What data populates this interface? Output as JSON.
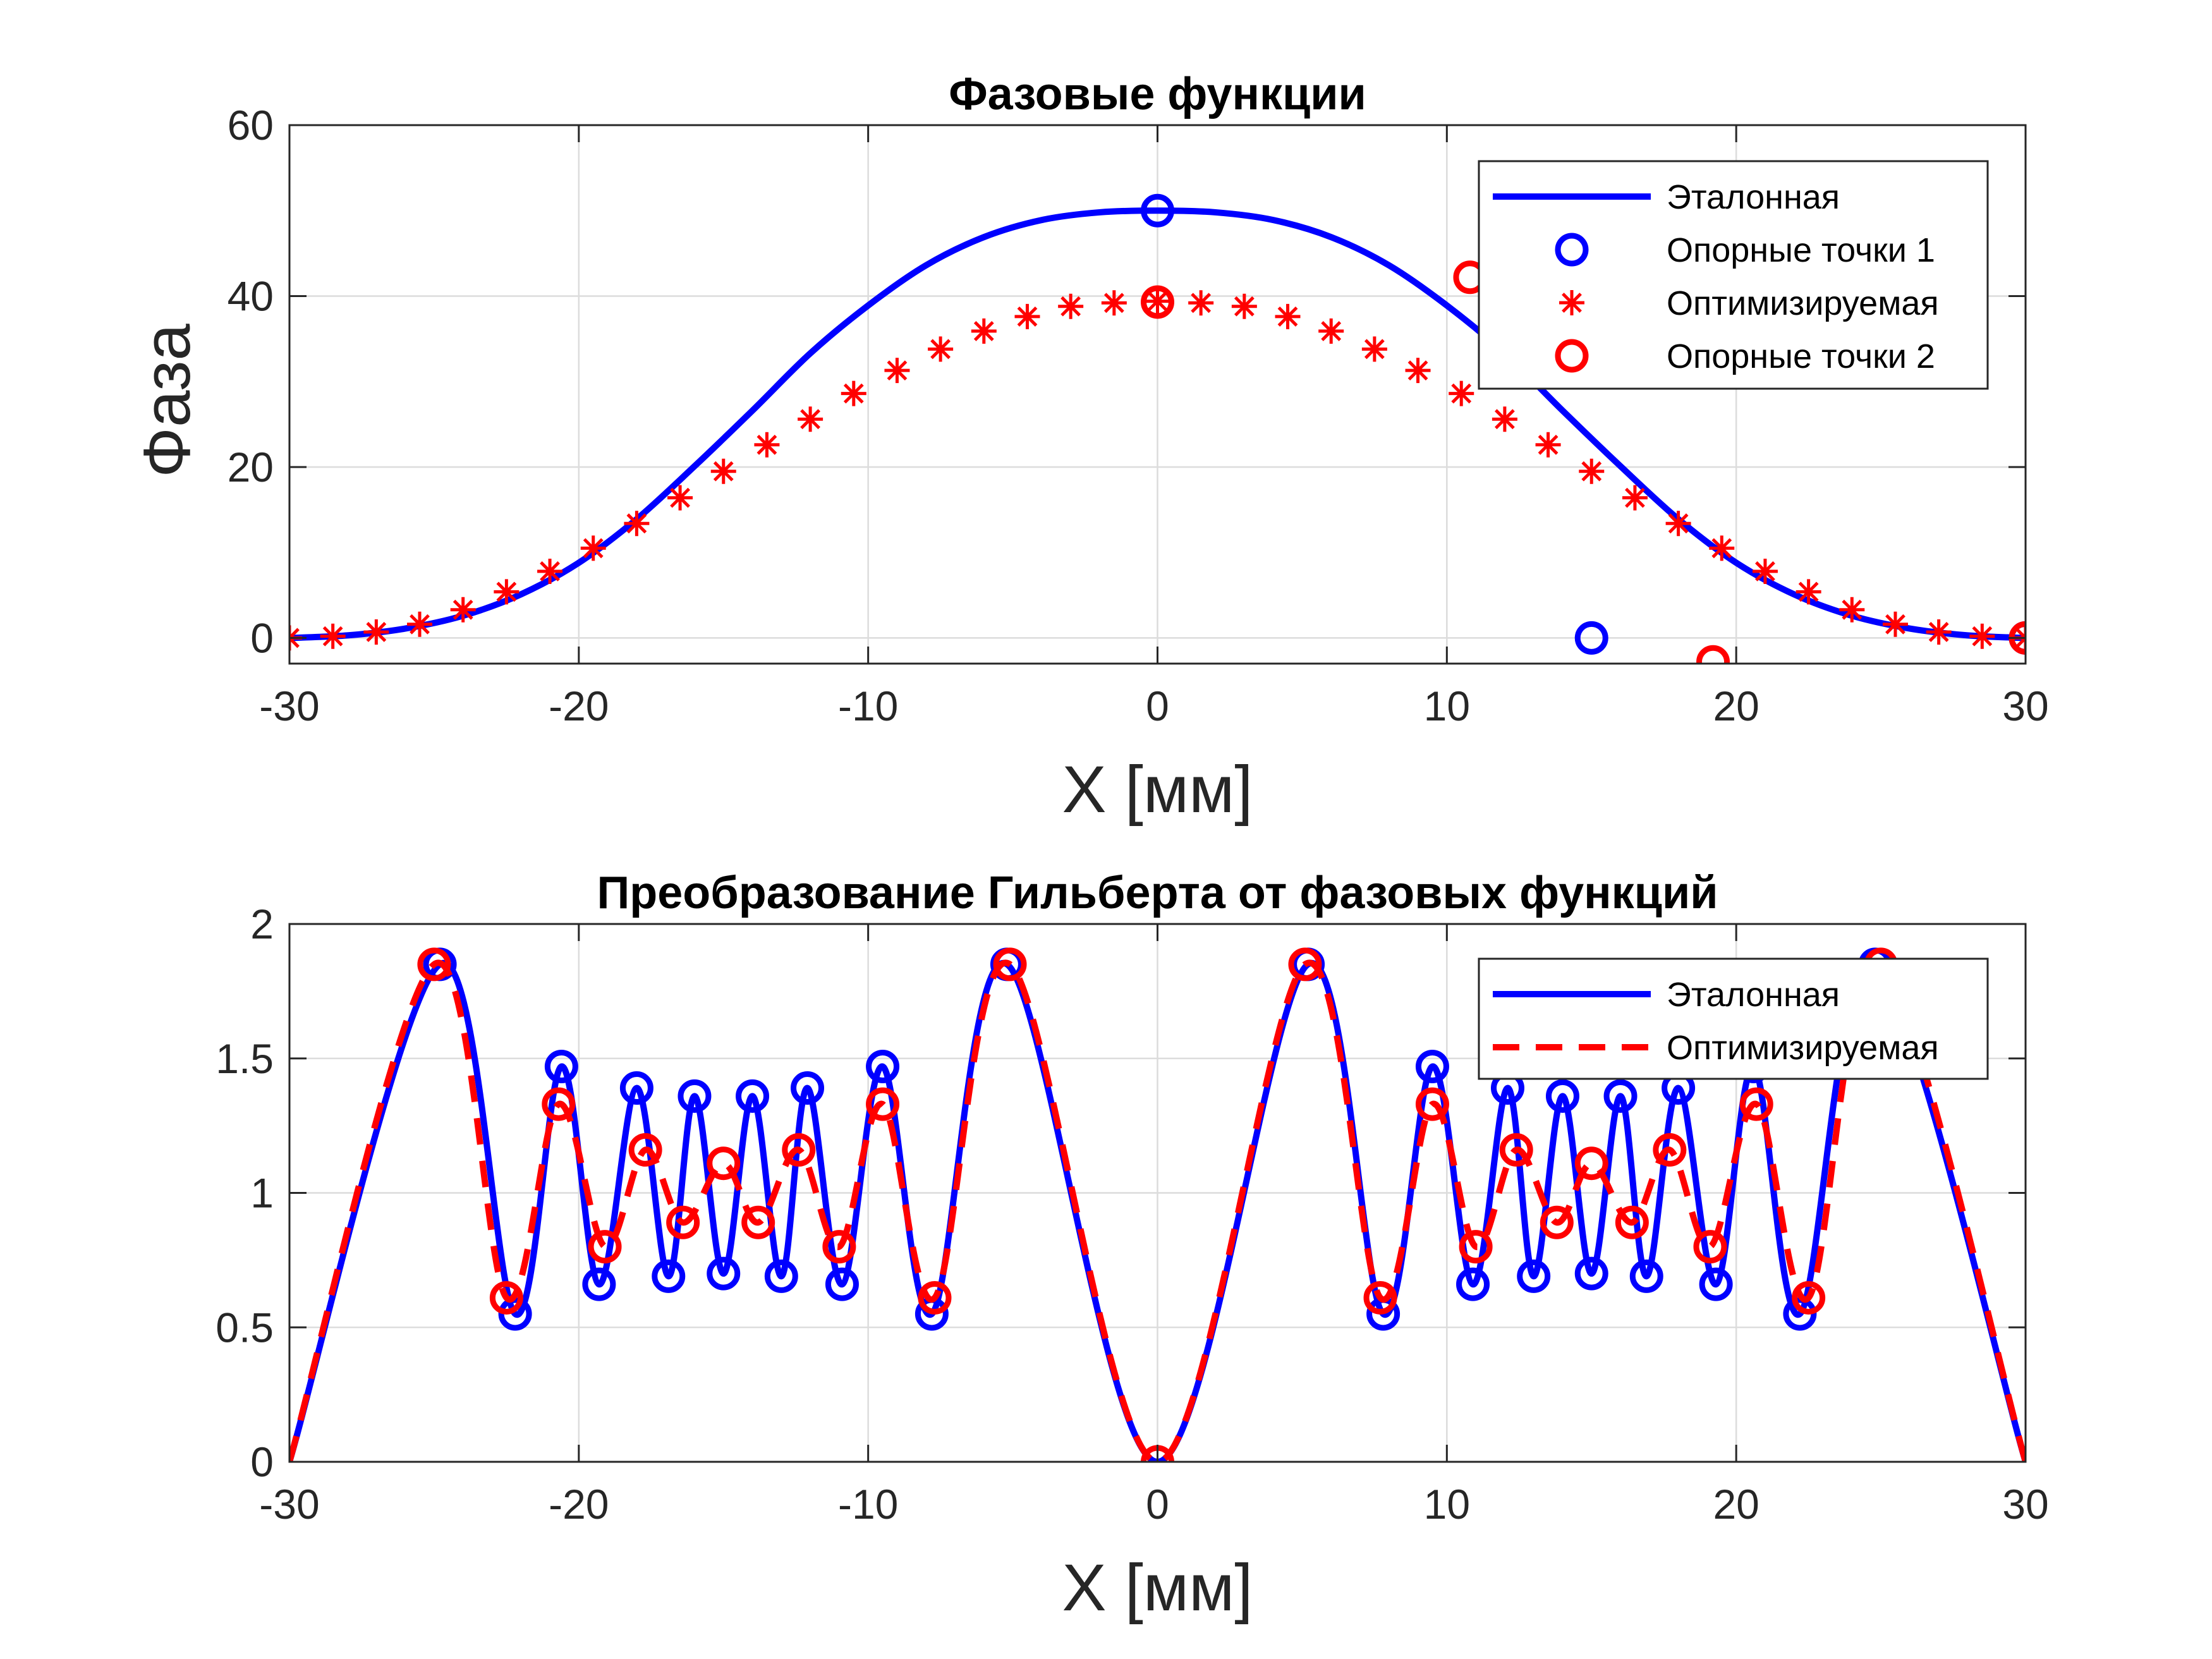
{
  "colors": {
    "blue": "#0000ff",
    "red": "#ff0000",
    "grid": "#dcdcdc",
    "axis": "#262626"
  },
  "chart_data": [
    {
      "type": "line",
      "title": "Фазовые функции",
      "xlabel": "X [мм]",
      "ylabel": "Фаза",
      "xlim": [
        -30,
        30
      ],
      "ylim": [
        -3,
        60
      ],
      "xticks": [
        -30,
        -20,
        -10,
        0,
        10,
        20,
        30
      ],
      "yticks": [
        0,
        20,
        40,
        60
      ],
      "grid": true,
      "legend_position": "top-right",
      "series": [
        {
          "name": "Эталонная",
          "style": "line",
          "color": "#0000ff",
          "x": [
            -30,
            -28,
            -26,
            -24,
            -22,
            -20,
            -18,
            -16,
            -14,
            -12,
            -10,
            -8,
            -6,
            -4,
            -2,
            0,
            2,
            4,
            6,
            8,
            10,
            12,
            14,
            16,
            18,
            20,
            22,
            24,
            26,
            28,
            30
          ],
          "y": [
            0,
            0.3,
            1.1,
            2.6,
            5.1,
            8.8,
            13.9,
            20.1,
            26.6,
            33.3,
            38.9,
            43.6,
            46.9,
            48.9,
            49.8,
            50,
            49.8,
            48.9,
            46.9,
            43.6,
            38.9,
            33.3,
            26.6,
            20.1,
            13.9,
            8.8,
            5.1,
            2.6,
            1.1,
            0.3,
            0
          ]
        },
        {
          "name": "Опорные точки 1",
          "style": "circle",
          "color": "#0000ff",
          "x": [
            0,
            15,
            30
          ],
          "y": [
            50,
            0,
            0
          ]
        },
        {
          "name": "Оптимизируемая",
          "style": "asterisk",
          "color": "#ff0000",
          "x": [
            -30,
            -28.5,
            -27,
            -25.5,
            -24,
            -22.5,
            -21,
            -19.5,
            -18,
            -16.5,
            -15,
            -13.5,
            -12,
            -10.5,
            -9,
            -7.5,
            -6,
            -4.5,
            -3,
            -1.5,
            0,
            1.5,
            3,
            4.5,
            6,
            7.5,
            9,
            10.5,
            12,
            13.5,
            15,
            16.5,
            18,
            19.5,
            21,
            22.5,
            24,
            25.5,
            27,
            28.5,
            30
          ],
          "y": [
            0,
            0.2,
            0.7,
            1.6,
            3.3,
            5.4,
            7.8,
            10.5,
            13.4,
            16.4,
            19.5,
            22.6,
            25.6,
            28.6,
            31.3,
            33.8,
            35.9,
            37.6,
            38.8,
            39.2,
            39.4,
            39.2,
            38.8,
            37.6,
            35.9,
            33.8,
            31.3,
            28.6,
            25.6,
            22.6,
            19.5,
            16.4,
            13.4,
            10.5,
            7.8,
            5.4,
            3.3,
            1.6,
            0.7,
            0.2,
            0
          ]
        },
        {
          "name": "Опорные точки 2",
          "style": "circle",
          "color": "#ff0000",
          "x": [
            0,
            10.8,
            19.2,
            30
          ],
          "y": [
            39.3,
            42.2,
            -2.8,
            0
          ]
        }
      ]
    },
    {
      "type": "line",
      "title": "Преобразование Гильберта от фазовых функций",
      "xlabel": "X [мм]",
      "ylabel": "",
      "xlim": [
        -30,
        30
      ],
      "ylim": [
        0,
        2
      ],
      "xticks": [
        -30,
        -20,
        -10,
        0,
        10,
        20,
        30
      ],
      "yticks": [
        0,
        0.5,
        1,
        1.5,
        2
      ],
      "ytick_labels": [
        "0",
        "0.5",
        "1",
        "1.5",
        "2"
      ],
      "grid": true,
      "legend_position": "top-right",
      "series": [
        {
          "name": "Эталонная",
          "style": "line",
          "color": "#0000ff",
          "x": [
            -30,
            -24.8,
            -22.2,
            -20.6,
            -19.3,
            -18,
            -16.9,
            -16,
            -15,
            -14,
            -13,
            -12.1,
            -10.9,
            -9.5,
            -7.8,
            -5.2,
            0,
            5.2,
            7.8,
            9.5,
            10.9,
            12.1,
            13,
            14,
            15,
            16,
            16.9,
            18,
            19.3,
            20.6,
            22.2,
            24.8,
            30
          ],
          "y": [
            0,
            1.85,
            0.55,
            1.47,
            0.66,
            1.39,
            0.69,
            1.36,
            0.7,
            1.36,
            0.69,
            1.39,
            0.66,
            1.47,
            0.55,
            1.85,
            0,
            1.85,
            0.55,
            1.47,
            0.66,
            1.39,
            0.69,
            1.36,
            0.7,
            1.36,
            0.69,
            1.39,
            0.66,
            1.47,
            0.55,
            1.85,
            0
          ]
        },
        {
          "name": "",
          "style": "circle",
          "color": "#0000ff",
          "x": [
            -24.8,
            -22.2,
            -20.6,
            -19.3,
            -18,
            -16.9,
            -16,
            -15,
            -14,
            -13,
            -12.1,
            -10.9,
            -9.5,
            -7.8,
            -5.2,
            5.2,
            7.8,
            9.5,
            10.9,
            12.1,
            13,
            14,
            15,
            16,
            16.9,
            18,
            19.3,
            20.6,
            22.2,
            24.8
          ],
          "y": [
            1.85,
            0.55,
            1.47,
            0.66,
            1.39,
            0.69,
            1.36,
            0.7,
            1.36,
            0.69,
            1.39,
            0.66,
            1.47,
            0.55,
            1.85,
            1.85,
            0.55,
            1.47,
            0.66,
            1.39,
            0.69,
            1.36,
            0.7,
            1.36,
            0.69,
            1.39,
            0.66,
            1.47,
            0.55,
            1.85
          ]
        },
        {
          "name": "Оптимизируемая",
          "style": "dashed",
          "color": "#ff0000",
          "x": [
            -30,
            -25,
            -22.5,
            -20.7,
            -19.1,
            -17.7,
            -16.4,
            -15,
            -13.8,
            -12.4,
            -11,
            -9.5,
            -7.7,
            -5.1,
            0,
            5.1,
            7.7,
            9.5,
            11,
            12.4,
            13.8,
            15,
            16.4,
            17.7,
            19.1,
            20.7,
            22.5,
            25,
            30
          ],
          "y": [
            0,
            1.85,
            0.61,
            1.33,
            0.8,
            1.16,
            0.89,
            1.11,
            0.89,
            1.16,
            0.8,
            1.33,
            0.61,
            1.85,
            0,
            1.85,
            0.61,
            1.33,
            0.8,
            1.16,
            0.89,
            1.11,
            0.89,
            1.16,
            0.8,
            1.33,
            0.61,
            1.85,
            0
          ]
        },
        {
          "name": "",
          "style": "circle",
          "color": "#ff0000",
          "x": [
            -25,
            -22.5,
            -20.7,
            -19.1,
            -17.7,
            -16.4,
            -15,
            -13.8,
            -12.4,
            -11,
            -9.5,
            -7.7,
            -5.1,
            0,
            5.1,
            7.7,
            9.5,
            11,
            12.4,
            13.8,
            15,
            16.4,
            17.7,
            19.1,
            20.7,
            22.5,
            25
          ],
          "y": [
            1.85,
            0.61,
            1.33,
            0.8,
            1.16,
            0.89,
            1.11,
            0.89,
            1.16,
            0.8,
            1.33,
            0.61,
            1.85,
            0,
            1.85,
            0.61,
            1.33,
            0.8,
            1.16,
            0.89,
            1.11,
            0.89,
            1.16,
            0.8,
            1.33,
            0.61,
            1.85
          ]
        }
      ]
    }
  ]
}
